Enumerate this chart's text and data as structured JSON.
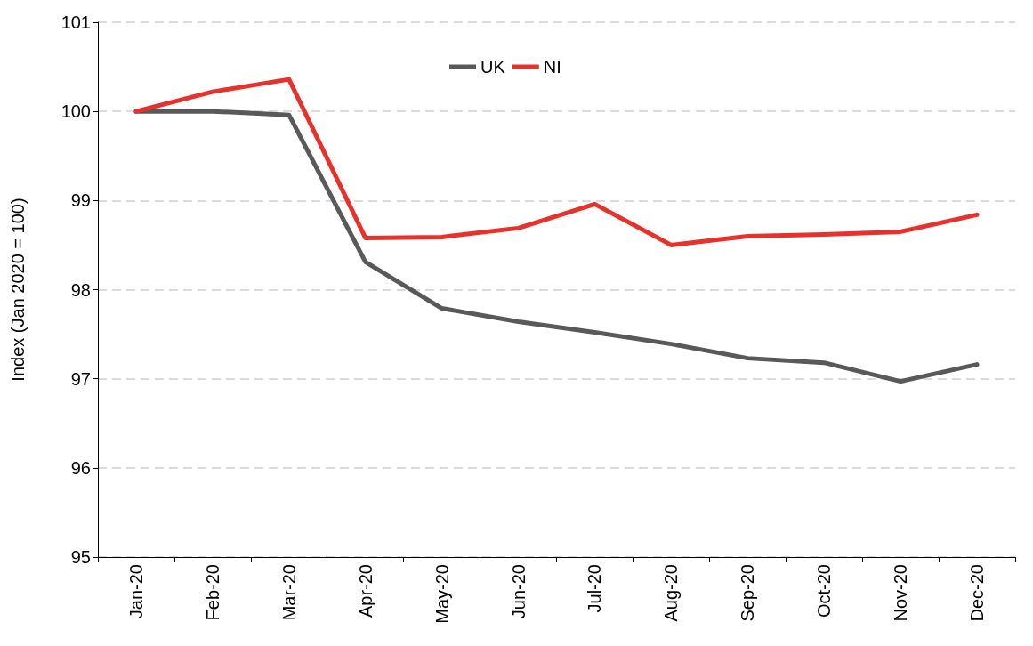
{
  "chart_data": {
    "type": "line",
    "ylabel": "Index (Jan 2020 = 100)",
    "categories": [
      "Jan-20",
      "Feb-20",
      "Mar-20",
      "Apr-20",
      "May-20",
      "Jun-20",
      "Jul-20",
      "Aug-20",
      "Sep-20",
      "Oct-20",
      "Nov-20",
      "Dec-20"
    ],
    "series": [
      {
        "name": "UK",
        "color": "#595959",
        "values": [
          100,
          100,
          99.96,
          98.31,
          97.79,
          97.64,
          97.52,
          97.39,
          97.23,
          97.18,
          96.97,
          97.16
        ]
      },
      {
        "name": "NI",
        "color": "#e8312a",
        "values": [
          100,
          100.22,
          100.36,
          98.58,
          98.59,
          98.69,
          98.96,
          98.5,
          98.6,
          98.62,
          98.65,
          98.84
        ]
      }
    ],
    "ylim": [
      95,
      101
    ],
    "yticks": [
      95,
      96,
      97,
      98,
      99,
      100,
      101
    ],
    "grid": "y",
    "legend": "top",
    "marker": "none",
    "line_style": "solid"
  }
}
